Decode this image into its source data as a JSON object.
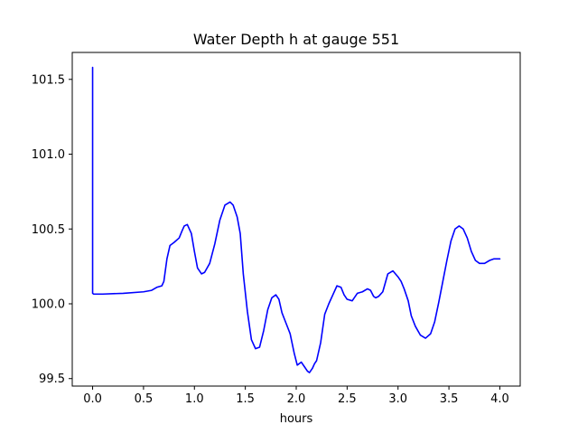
{
  "chart_data": {
    "type": "line",
    "title": "Water Depth h at gauge 551",
    "xlabel": "hours",
    "ylabel": "",
    "xlim": [
      -0.2,
      4.2
    ],
    "ylim": [
      99.45,
      101.68
    ],
    "xticks": [
      0.0,
      0.5,
      1.0,
      1.5,
      2.0,
      2.5,
      3.0,
      3.5,
      4.0
    ],
    "xtick_labels": [
      "0.0",
      "0.5",
      "1.0",
      "1.5",
      "2.0",
      "2.5",
      "3.0",
      "3.5",
      "4.0"
    ],
    "yticks": [
      99.5,
      100.0,
      100.5,
      101.0,
      101.5
    ],
    "ytick_labels": [
      "99.5",
      "100.0",
      "100.5",
      "101.0",
      "101.5"
    ],
    "grid": false,
    "series_color": "#0000ff",
    "series": [
      {
        "x": [
          0.0,
          0.0,
          0.01,
          0.1,
          0.3,
          0.5,
          0.58,
          0.63,
          0.68,
          0.7,
          0.73,
          0.76,
          0.8,
          0.85,
          0.88,
          0.9,
          0.93,
          0.97,
          1.0,
          1.03,
          1.07,
          1.1,
          1.15,
          1.2,
          1.25,
          1.3,
          1.35,
          1.38,
          1.42,
          1.45,
          1.48,
          1.52,
          1.56,
          1.6,
          1.64,
          1.68,
          1.72,
          1.76,
          1.8,
          1.83,
          1.86,
          1.9,
          1.94,
          1.98,
          2.01,
          2.05,
          2.08,
          2.11,
          2.13,
          2.16,
          2.18,
          2.2,
          2.24,
          2.28,
          2.32,
          2.36,
          2.4,
          2.44,
          2.47,
          2.5,
          2.55,
          2.6,
          2.65,
          2.7,
          2.73,
          2.76,
          2.78,
          2.81,
          2.85,
          2.9,
          2.95,
          3.0,
          3.03,
          3.06,
          3.1,
          3.13,
          3.17,
          3.22,
          3.27,
          3.32,
          3.36,
          3.4,
          3.44,
          3.48,
          3.52,
          3.56,
          3.6,
          3.64,
          3.68,
          3.72,
          3.76,
          3.8,
          3.85,
          3.9,
          3.94,
          3.98,
          4.0
        ],
        "y": [
          101.58,
          100.07,
          100.065,
          100.065,
          100.07,
          100.08,
          100.09,
          100.11,
          100.12,
          100.15,
          100.3,
          100.39,
          100.41,
          100.44,
          100.49,
          100.52,
          100.53,
          100.47,
          100.35,
          100.24,
          100.2,
          100.21,
          100.27,
          100.4,
          100.56,
          100.66,
          100.68,
          100.66,
          100.58,
          100.47,
          100.2,
          99.95,
          99.76,
          99.7,
          99.71,
          99.82,
          99.96,
          100.04,
          100.06,
          100.03,
          99.94,
          99.87,
          99.8,
          99.67,
          99.59,
          99.61,
          99.58,
          99.55,
          99.54,
          99.57,
          99.6,
          99.62,
          99.74,
          99.93,
          100.0,
          100.06,
          100.12,
          100.11,
          100.06,
          100.03,
          100.02,
          100.07,
          100.08,
          100.1,
          100.09,
          100.05,
          100.04,
          100.05,
          100.08,
          100.2,
          100.22,
          100.18,
          100.15,
          100.1,
          100.02,
          99.92,
          99.85,
          99.79,
          99.77,
          99.8,
          99.88,
          100.01,
          100.15,
          100.29,
          100.42,
          100.5,
          100.52,
          100.5,
          100.44,
          100.35,
          100.29,
          100.27,
          100.27,
          100.29,
          100.3,
          100.3,
          100.3
        ]
      }
    ]
  }
}
